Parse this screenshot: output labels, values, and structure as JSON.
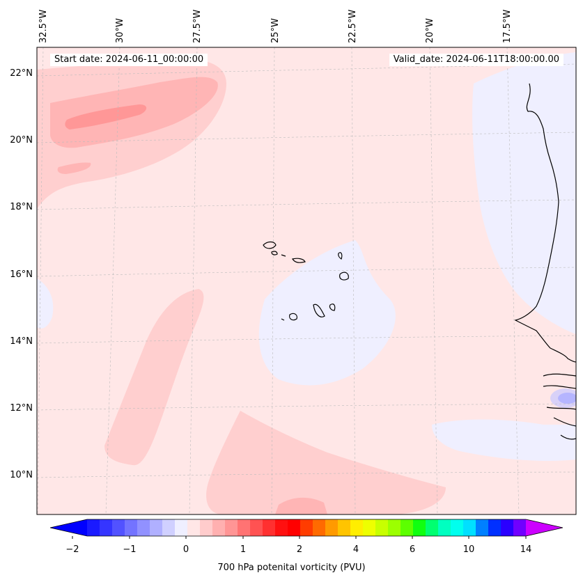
{
  "header": {
    "start_date": "Start date: 2024-06-11_00:00:00",
    "valid_date": "Valid_date: 2024-06-11T18:00:00.00"
  },
  "map": {
    "lon_labels": [
      "32.5°W",
      "30°W",
      "27.5°W",
      "25°W",
      "22.5°W",
      "20°W",
      "17.5°W"
    ],
    "lat_labels": [
      "22°N",
      "20°N",
      "18°N",
      "16°N",
      "14°N",
      "12°N",
      "10°N"
    ]
  },
  "colorbar": {
    "ticks": [
      "−2",
      "−1",
      "0",
      "1",
      "2",
      "4",
      "6",
      "10",
      "14"
    ],
    "label": "700 hPa potenital vorticity (PVU)",
    "colors": [
      "#1a1aff",
      "#3535ff",
      "#5252ff",
      "#7373ff",
      "#9191ff",
      "#b0b0ff",
      "#d0d0ff",
      "#efefff",
      "#ffe6e6",
      "#ffcccc",
      "#ffb0b0",
      "#ff9595",
      "#ff7373",
      "#ff5252",
      "#ff3030",
      "#ff1010",
      "#ff0000",
      "#ff3c00",
      "#ff6a00",
      "#ff9a00",
      "#ffc400",
      "#ffee00",
      "#eeff00",
      "#c8ff00",
      "#9cff00",
      "#5cff00",
      "#10ff10",
      "#00ff70",
      "#00ffc0",
      "#00ffee",
      "#00e0ff",
      "#0080ff",
      "#0030ff",
      "#2a00ff",
      "#7000ff"
    ],
    "under_color": "#0000ff",
    "over_color": "#cc00ff"
  }
}
